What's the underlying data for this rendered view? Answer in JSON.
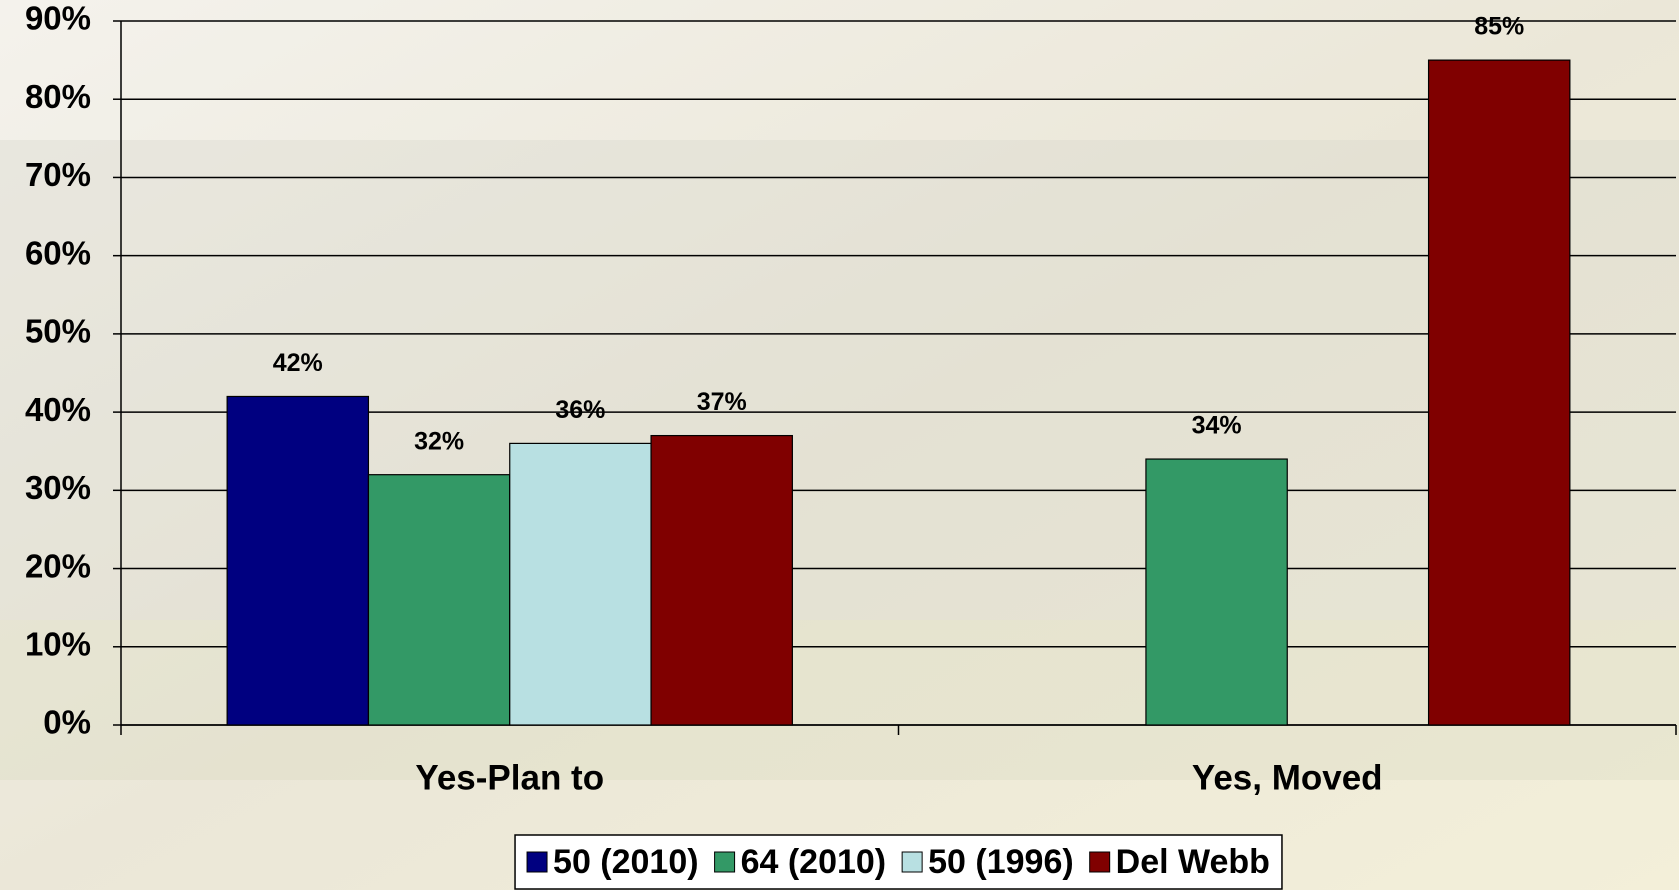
{
  "chart_data": {
    "type": "bar",
    "categories": [
      "Yes-Plan to",
      "Yes, Moved"
    ],
    "series": [
      {
        "name": "50 (2010)",
        "color": "#000080",
        "values": [
          42,
          null
        ],
        "value_labels": [
          "42%",
          null
        ]
      },
      {
        "name": "64 (2010)",
        "color": "#339966",
        "values": [
          32,
          34
        ],
        "value_labels": [
          "32%",
          "34%"
        ]
      },
      {
        "name": "50 (1996)",
        "color": "#b8e0e2",
        "values": [
          36,
          null
        ],
        "value_labels": [
          "36%",
          null
        ]
      },
      {
        "name": "Del Webb",
        "color": "#800000",
        "values": [
          37,
          85
        ],
        "value_labels": [
          "37%",
          "85%"
        ]
      }
    ],
    "ylim": [
      0,
      90
    ],
    "yticks": [
      {
        "value": 0,
        "label": "0%"
      },
      {
        "value": 10,
        "label": "10%"
      },
      {
        "value": 20,
        "label": "20%"
      },
      {
        "value": 30,
        "label": "30%"
      },
      {
        "value": 40,
        "label": "40%"
      },
      {
        "value": 50,
        "label": "50%"
      },
      {
        "value": 60,
        "label": "60%"
      },
      {
        "value": 70,
        "label": "70%"
      },
      {
        "value": 80,
        "label": "80%"
      },
      {
        "value": 90,
        "label": "90%"
      }
    ],
    "grid": true,
    "legend": "bottom"
  }
}
